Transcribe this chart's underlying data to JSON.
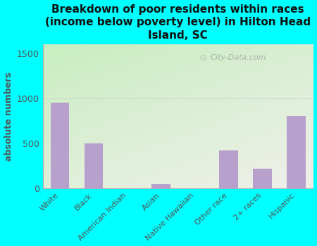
{
  "categories": [
    "White",
    "Black",
    "American Indian",
    "Asian",
    "Native Hawaiian",
    "Other race",
    "2+ races",
    "Hispanic"
  ],
  "values": [
    950,
    500,
    0,
    50,
    0,
    420,
    220,
    800
  ],
  "bar_color": "#b8a0cc",
  "title": "Breakdown of poor residents within races\n(income below poverty level) in Hilton Head\nIsland, SC",
  "ylabel": "absolute numbers",
  "ylim": [
    0,
    1600
  ],
  "yticks": [
    0,
    500,
    1000,
    1500
  ],
  "background_color": "#00ffff",
  "plot_bg_topleft": "#c8eec0",
  "plot_bg_right": "#eeeeea",
  "plot_bg_bottom": "#e8e8e0",
  "title_color": "#111111",
  "axis_color": "#555555",
  "tick_color": "#555555",
  "watermark": "City-Data.com"
}
